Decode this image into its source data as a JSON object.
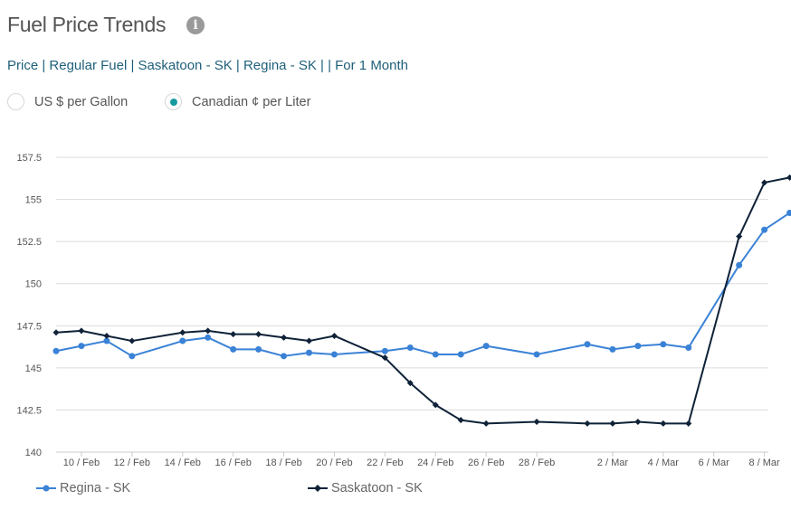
{
  "header": {
    "title": "Fuel Price Trends",
    "info_icon": "info-icon",
    "subtitle": "Price | Regular Fuel | Saskatoon - SK | Regina - SK | | For 1 Month"
  },
  "units": {
    "options": [
      {
        "label": "US $ per Gallon",
        "selected": false
      },
      {
        "label": "Canadian ¢ per Liter",
        "selected": true
      }
    ],
    "selected_color": "#1a9aa0"
  },
  "chart_data": {
    "type": "line",
    "x": [
      "9 Feb",
      "10 Feb",
      "11 Feb",
      "12 Feb",
      "14 Feb",
      "15 Feb",
      "16 Feb",
      "17 Feb",
      "18 Feb",
      "19 Feb",
      "20 Feb",
      "22 Feb",
      "23 Feb",
      "24 Feb",
      "25 Feb",
      "26 Feb",
      "28 Feb",
      "1 Mar",
      "2 Mar",
      "3 Mar",
      "4 Mar",
      "5 Mar",
      "7 Mar",
      "8 Mar",
      "9 Mar"
    ],
    "x_ticks": [
      "10 / Feb",
      "12 / Feb",
      "14 / Feb",
      "16 / Feb",
      "18 / Feb",
      "20 / Feb",
      "22 / Feb",
      "24 / Feb",
      "26 / Feb",
      "28 / Feb",
      "2 / Mar",
      "4 / Mar",
      "6 / Mar",
      "8 / Mar"
    ],
    "y_ticks": [
      "140",
      "142.5",
      "145",
      "147.5",
      "150",
      "152.5",
      "155",
      "157.5"
    ],
    "ylim": [
      140,
      157.5
    ],
    "grid": true,
    "legend_position": "bottom",
    "series": [
      {
        "name": "Regina - SK",
        "color": "#3a82d6",
        "marker": "circle",
        "values": [
          146.0,
          146.3,
          146.6,
          145.7,
          146.6,
          146.8,
          146.1,
          146.1,
          145.7,
          145.9,
          145.8,
          146.0,
          146.2,
          145.8,
          145.8,
          146.3,
          145.8,
          146.4,
          146.1,
          146.3,
          146.4,
          146.2,
          151.1,
          153.2,
          154.2
        ]
      },
      {
        "name": "Saskatoon - SK",
        "color": "#0f2238",
        "marker": "diamond",
        "values": [
          147.1,
          147.2,
          146.9,
          146.6,
          147.1,
          147.2,
          147.0,
          147.0,
          146.8,
          146.6,
          146.9,
          145.6,
          144.1,
          142.8,
          141.9,
          141.7,
          141.8,
          141.7,
          141.7,
          141.8,
          141.7,
          141.7,
          152.8,
          156.0,
          156.3
        ]
      }
    ]
  }
}
